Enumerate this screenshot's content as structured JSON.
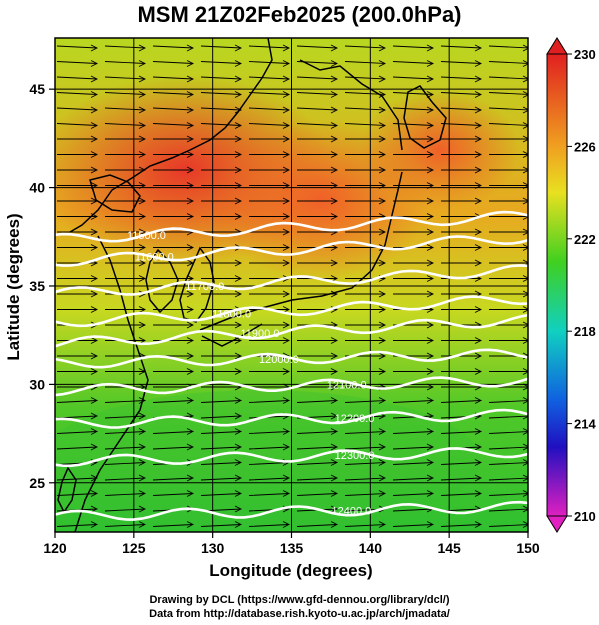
{
  "title": "MSM 21Z02Feb2025 (200.0hPa)",
  "map": {
    "lon_range": [
      120,
      150
    ],
    "lat_range": [
      22.5,
      47.6
    ],
    "x_ticks": [
      120,
      125,
      130,
      135,
      140,
      145,
      150
    ],
    "y_ticks": [
      25,
      30,
      35,
      40,
      45
    ],
    "x_label": "Longitude (degrees)",
    "y_label": "Latitude  (degrees)",
    "grid": true
  },
  "field": {
    "type": "temperature",
    "colorbar_ticks": [
      "230",
      "226",
      "222",
      "218",
      "214",
      "210"
    ],
    "colorbar_range": [
      210,
      230
    ],
    "colors": {
      "210": "#e020c0",
      "214": "#1020d0",
      "218": "#10d0e0",
      "222": "#20c020",
      "226": "#e0e020",
      "230": "#e02020"
    }
  },
  "contours": {
    "color": "#ffffff",
    "levels": [
      {
        "label": "11500.0",
        "lon": 125.8,
        "lat": 37.6
      },
      {
        "label": "11600.0",
        "lon": 126.3,
        "lat": 36.5
      },
      {
        "label": "11700.0",
        "lon": 129.5,
        "lat": 35.0
      },
      {
        "label": "11800.0",
        "lon": 131.2,
        "lat": 33.6
      },
      {
        "label": "11900.0",
        "lon": 133.0,
        "lat": 32.6
      },
      {
        "label": "12000.0",
        "lon": 134.2,
        "lat": 31.3
      },
      {
        "label": "12100.0",
        "lon": 138.5,
        "lat": 30.0
      },
      {
        "label": "12200.0",
        "lon": 139.0,
        "lat": 28.3
      },
      {
        "label": "12300.0",
        "lon": 139.0,
        "lat": 26.4
      },
      {
        "label": "12400.0",
        "lon": 138.8,
        "lat": 23.6
      }
    ]
  },
  "wind_vectors": true,
  "credits": [
    "Drawing by DCL (https://www.gfd-dennou.org/library/dcl/)",
    "Data from http://database.rish.kyoto-u.ac.jp/arch/jmadata/"
  ]
}
